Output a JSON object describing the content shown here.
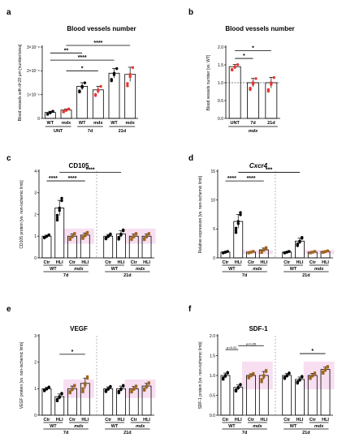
{
  "chart_data": [
    {
      "panel": "a",
      "type": "bar",
      "title": "Blood vessels number",
      "ylabel": "Blood vessels with d<20 μm [number/area]",
      "ylim": [
        0,
        3e-06
      ],
      "yticks": [
        "0",
        "1×10⁻⁶",
        "2×10⁻⁶",
        "3×10⁻⁶"
      ],
      "categories": [
        "WT",
        "mdx",
        "WT",
        "mdx",
        "WT",
        "mdx"
      ],
      "groups": [
        "UNT",
        "7d",
        "21d"
      ],
      "values": [
        2.5e-07,
        3.5e-07,
        1.35e-06,
        1.2e-06,
        1.9e-06,
        1.85e-06
      ],
      "errors": [
        5e-08,
        5e-08,
        1.5e-07,
        1.5e-07,
        2e-07,
        3e-07
      ],
      "colors": [
        "#000000",
        "#e8352f",
        "#000000",
        "#e8352f",
        "#000000",
        "#e8352f"
      ],
      "significance": [
        "*",
        "**",
        "****",
        "****"
      ]
    },
    {
      "panel": "b",
      "type": "bar",
      "title": "Blood vessels number",
      "ylabel": "Blood vessels number [vs. WT]",
      "ylim": [
        0,
        2.0
      ],
      "yticks": [
        "0.0",
        "0.5",
        "1.0",
        "1.5",
        "2.0"
      ],
      "categories": [
        "UNT",
        "7d",
        "21d"
      ],
      "group": "mdx",
      "values": [
        1.45,
        1.0,
        1.0
      ],
      "errors": [
        0.06,
        0.12,
        0.15
      ],
      "colors": [
        "#e8352f",
        "#e8352f",
        "#e8352f"
      ],
      "reference_line": 1.0,
      "significance": [
        "*",
        "*"
      ]
    },
    {
      "panel": "c",
      "type": "bar",
      "title": "CD105",
      "ylabel": "CD105 protein [vs. non-ischemic limb]",
      "ylim": [
        0,
        4
      ],
      "yticks": [
        "0",
        "1",
        "2",
        "3",
        "4"
      ],
      "categories": [
        "Ctr",
        "HLI",
        "Ctr",
        "HLI",
        "Ctr",
        "HLI",
        "Ctr",
        "HLI"
      ],
      "groups": [
        "WT",
        "mdx",
        "WT",
        "mdx"
      ],
      "time": [
        "7d",
        "21d"
      ],
      "values": [
        1.0,
        2.3,
        1.0,
        1.05,
        1.0,
        1.1,
        1.0,
        1.0
      ],
      "errors": [
        0.05,
        0.35,
        0.1,
        0.1,
        0.08,
        0.15,
        0.1,
        0.1
      ],
      "colors": [
        "#000000",
        "#000000",
        "#a0651c",
        "#a0651c",
        "#000000",
        "#000000",
        "#a0651c",
        "#a0651c"
      ],
      "significance": [
        "****",
        "****",
        "****"
      ]
    },
    {
      "panel": "d",
      "type": "bar",
      "title": "Cxcr4",
      "ylabel": "Relative expression [vs. non-ischemic limb]",
      "ylim": [
        0,
        15
      ],
      "yticks": [
        "0",
        "5",
        "10",
        "15"
      ],
      "categories": [
        "Ctr",
        "HLI",
        "Ctr",
        "HLI",
        "Ctr",
        "HLI",
        "Ctr",
        "HLI"
      ],
      "groups": [
        "WT",
        "mdx",
        "WT",
        "mdx"
      ],
      "time": [
        "7d",
        "21d"
      ],
      "values": [
        1.0,
        6.3,
        1.0,
        1.4,
        1.0,
        2.9,
        1.0,
        1.1
      ],
      "errors": [
        0.1,
        1.2,
        0.1,
        0.3,
        0.1,
        0.5,
        0.1,
        0.1
      ],
      "colors": [
        "#000000",
        "#000000",
        "#a0651c",
        "#a0651c",
        "#000000",
        "#000000",
        "#a0651c",
        "#a0651c"
      ],
      "significance": [
        "****",
        "****",
        "***"
      ]
    },
    {
      "panel": "e",
      "type": "bar",
      "title": "VEGF",
      "ylabel": "VEGF protein [vs. non-ischemic limb]",
      "ylim": [
        0,
        3
      ],
      "yticks": [
        "0",
        "1",
        "2",
        "3"
      ],
      "categories": [
        "Ctr",
        "HLI",
        "Ctr",
        "HLI",
        "Ctr",
        "HLI",
        "Ctr",
        "HLI"
      ],
      "groups": [
        "WT",
        "mdx",
        "WT",
        "mdx"
      ],
      "time": [
        "7d",
        "21d"
      ],
      "values": [
        1.0,
        0.7,
        1.0,
        1.2,
        1.0,
        1.0,
        1.0,
        1.1
      ],
      "errors": [
        0.05,
        0.1,
        0.1,
        0.2,
        0.07,
        0.1,
        0.08,
        0.1
      ],
      "colors": [
        "#000000",
        "#000000",
        "#a0651c",
        "#a0651c",
        "#000000",
        "#000000",
        "#a0651c",
        "#a0651c"
      ],
      "significance": [
        "*"
      ]
    },
    {
      "panel": "f",
      "type": "bar",
      "title": "SDF-1",
      "ylabel": "SDF-1 protein [vs. non-ischemic limb]",
      "ylim": [
        0,
        2.0
      ],
      "yticks": [
        "0.0",
        "0.5",
        "1.0",
        "1.5",
        "2.0"
      ],
      "categories": [
        "Ctr",
        "HLI",
        "Ctr",
        "HLI",
        "Ctr",
        "HLI",
        "Ctr",
        "HLI"
      ],
      "groups": [
        "WT",
        "mdx",
        "WT",
        "mdx"
      ],
      "time": [
        "7d",
        "21d"
      ],
      "values": [
        1.0,
        0.7,
        1.0,
        1.0,
        1.0,
        0.9,
        1.0,
        1.15
      ],
      "errors": [
        0.06,
        0.06,
        0.04,
        0.1,
        0.05,
        0.06,
        0.05,
        0.06
      ],
      "colors": [
        "#000000",
        "#000000",
        "#a0651c",
        "#a0651c",
        "#000000",
        "#000000",
        "#a0651c",
        "#a0651c"
      ],
      "significance": [
        "p<0.01",
        "p<0.05",
        "*"
      ]
    }
  ]
}
